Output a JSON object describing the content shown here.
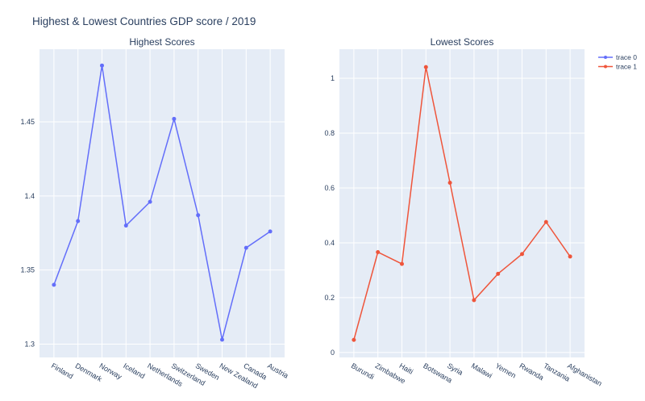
{
  "chart_data": [
    {
      "type": "line",
      "title": "Highest Scores",
      "categories": [
        "Finland",
        "Denmark",
        "Norway",
        "Iceland",
        "Netherlands",
        "Switzerland",
        "Sweden",
        "New Zealand",
        "Canada",
        "Austria"
      ],
      "values": [
        1.34,
        1.383,
        1.488,
        1.38,
        1.396,
        1.452,
        1.387,
        1.303,
        1.365,
        1.376
      ],
      "series_name": "trace 0",
      "color": "#636efa",
      "yticks": [
        1.3,
        1.35,
        1.4,
        1.45
      ],
      "ytick_labels": [
        "1.3",
        "1.35",
        "1.4",
        "1.45"
      ],
      "ylim": [
        1.291,
        1.499
      ],
      "xlabel": "",
      "ylabel": "",
      "grid": true
    },
    {
      "type": "line",
      "title": "Lowest Scores",
      "categories": [
        "Burundi",
        "Zimbabwe",
        "Haiti",
        "Botswana",
        "Syria",
        "Malawi",
        "Yemen",
        "Rwanda",
        "Tanzania",
        "Afghanistan"
      ],
      "values": [
        0.046,
        0.366,
        0.323,
        1.041,
        0.619,
        0.191,
        0.287,
        0.359,
        0.476,
        0.35
      ],
      "series_name": "trace 1",
      "color": "#ef553b",
      "yticks": [
        0,
        0.2,
        0.4,
        0.6,
        0.8,
        1
      ],
      "ytick_labels": [
        "0",
        "0.2",
        "0.4",
        "0.6",
        "0.8",
        "1"
      ],
      "ylim": [
        -0.018,
        1.106
      ],
      "xlabel": "",
      "ylabel": "",
      "grid": true
    }
  ],
  "title": "Highest & Lowest Countries GDP score / 2019",
  "legend": {
    "placement": "top-right",
    "items": [
      "trace 0",
      "trace 1"
    ]
  }
}
